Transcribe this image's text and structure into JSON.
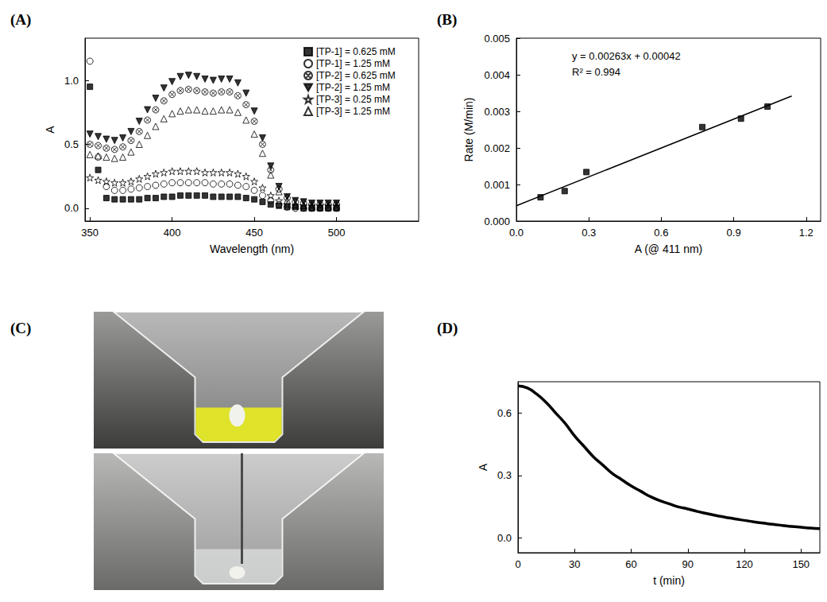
{
  "chart_data": [
    {
      "type": "scatter",
      "title": "(A)",
      "x_label": "Wavelength (nm)",
      "y_label": "A",
      "x": [
        350,
        355,
        360,
        365,
        370,
        375,
        380,
        385,
        390,
        395,
        400,
        405,
        410,
        415,
        420,
        425,
        430,
        435,
        440,
        445,
        450,
        455,
        460,
        465,
        470,
        475,
        480,
        485,
        490,
        495,
        500
      ],
      "series": [
        {
          "name": "[TP-1] = 0.625 mM",
          "color": "#000000",
          "marker": "square",
          "values": [
            0.95,
            0.3,
            0.08,
            0.07,
            0.07,
            0.07,
            0.07,
            0.08,
            0.08,
            0.09,
            0.09,
            0.1,
            0.1,
            0.1,
            0.1,
            0.09,
            0.09,
            0.09,
            0.09,
            0.08,
            0.07,
            0.05,
            0.03,
            0.02,
            0.01,
            0.01,
            0,
            0,
            0,
            0,
            0
          ]
        },
        {
          "name": "[TP-1] = 1.25 mM",
          "color": "#000000",
          "marker": "circle_open",
          "values": [
            1.15,
            0.4,
            0.17,
            0.14,
            0.14,
            0.15,
            0.16,
            0.17,
            0.18,
            0.19,
            0.2,
            0.2,
            0.2,
            0.2,
            0.2,
            0.19,
            0.19,
            0.19,
            0.18,
            0.17,
            0.14,
            0.1,
            0.06,
            0.03,
            0.01,
            0,
            0,
            0,
            0,
            0,
            0
          ]
        },
        {
          "name": "[TP-2] = 0.625 mM",
          "color": "#000000",
          "marker": "circle_crossed",
          "values": [
            0.5,
            0.49,
            0.47,
            0.46,
            0.48,
            0.53,
            0.6,
            0.69,
            0.77,
            0.84,
            0.89,
            0.92,
            0.93,
            0.92,
            0.91,
            0.9,
            0.91,
            0.91,
            0.88,
            0.81,
            0.68,
            0.5,
            0.3,
            0.15,
            0.08,
            0.05,
            0.04,
            0.03,
            0.03,
            0.03,
            0.03
          ]
        },
        {
          "name": "[TP-2] = 1.25 mM",
          "color": "#000000",
          "marker": "triangle_down",
          "values": [
            0.58,
            0.56,
            0.54,
            0.53,
            0.55,
            0.6,
            0.68,
            0.77,
            0.86,
            0.94,
            0.99,
            1.03,
            1.04,
            1.03,
            1.01,
            1.0,
            1.01,
            1.01,
            0.98,
            0.9,
            0.76,
            0.55,
            0.33,
            0.17,
            0.09,
            0.06,
            0.05,
            0.04,
            0.04,
            0.04,
            0.04
          ]
        },
        {
          "name": "[TP-3] = 0.25 mM",
          "color": "#000000",
          "marker": "star",
          "values": [
            0.24,
            0.22,
            0.21,
            0.2,
            0.2,
            0.21,
            0.23,
            0.25,
            0.27,
            0.28,
            0.29,
            0.29,
            0.29,
            0.29,
            0.28,
            0.28,
            0.28,
            0.28,
            0.27,
            0.25,
            0.21,
            0.16,
            0.1,
            0.06,
            0.03,
            0.02,
            0.02,
            0.02,
            0.02,
            0.02,
            0.02
          ]
        },
        {
          "name": "[TP-3] = 1.25 mM",
          "color": "#000000",
          "marker": "triangle_open",
          "values": [
            0.42,
            0.41,
            0.4,
            0.39,
            0.4,
            0.44,
            0.5,
            0.57,
            0.64,
            0.7,
            0.74,
            0.76,
            0.77,
            0.77,
            0.76,
            0.76,
            0.77,
            0.77,
            0.75,
            0.69,
            0.58,
            0.43,
            0.26,
            0.13,
            0.06,
            0.03,
            0.02,
            0.01,
            0.01,
            0.01,
            0.01
          ]
        }
      ],
      "xlim": [
        347,
        550
      ],
      "xticks": [
        350,
        400,
        450,
        500
      ],
      "ylim": [
        -0.1,
        1.33
      ],
      "yticks": [
        {
          "value": 0,
          "label": "0.0"
        },
        {
          "value": 0.5,
          "label": "0.5"
        },
        {
          "value": 1,
          "label": "1.0"
        }
      ],
      "legend": "top-right",
      "grid": false
    },
    {
      "type": "scatter",
      "title": "(B)",
      "x_label": "A (@ 411 nm)",
      "y_label": "Rate (M/min)",
      "series": [
        {
          "type": "scatter",
          "color": "#000000",
          "marker": "square",
          "x": [
            0.1,
            0.2,
            0.29,
            0.77,
            0.93,
            1.04
          ],
          "values": [
            0.00065,
            0.00082,
            0.00134,
            0.00257,
            0.0028,
            0.00313
          ]
        },
        {
          "type": "line",
          "color": "#000000",
          "marker": "none",
          "line_style": "solid",
          "x": [
            0,
            1.14
          ],
          "values": [
            0.00042,
            0.00342
          ]
        }
      ],
      "annotations": [
        "y = 0.00263x + 0.00042",
        "R² = 0.994"
      ],
      "xlim": [
        0,
        1.26
      ],
      "xticks": [
        {
          "value": 0,
          "label": "0.0"
        },
        {
          "value": 0.3,
          "label": "0.3"
        },
        {
          "value": 0.6,
          "label": "0.6"
        },
        {
          "value": 0.9,
          "label": "0.9"
        },
        {
          "value": 1.2,
          "label": "1.2"
        }
      ],
      "ylim": [
        0,
        0.005
      ],
      "yticks": [
        {
          "value": 0,
          "label": "0.000"
        },
        {
          "value": 0.001,
          "label": "0.001"
        },
        {
          "value": 0.002,
          "label": "0.002"
        },
        {
          "value": 0.003,
          "label": "0.003"
        },
        {
          "value": 0.004,
          "label": "0.004"
        },
        {
          "value": 0.005,
          "label": "0.005"
        }
      ],
      "grid": false
    },
    {
      "type": "photo",
      "title": "(C)"
    },
    {
      "type": "line",
      "title": "(D)",
      "x_label": "t (min)",
      "y_label": "A",
      "x": [
        0,
        5,
        10,
        15,
        20,
        25,
        30,
        35,
        40,
        45,
        50,
        55,
        60,
        65,
        70,
        75,
        80,
        85,
        90,
        95,
        100,
        105,
        110,
        115,
        120,
        125,
        130,
        135,
        140,
        145,
        150,
        155,
        160
      ],
      "series": [
        {
          "color": "#000000",
          "marker": "none",
          "line_style": "solid",
          "values": [
            0.73,
            0.72,
            0.69,
            0.65,
            0.6,
            0.55,
            0.49,
            0.44,
            0.39,
            0.35,
            0.31,
            0.28,
            0.25,
            0.225,
            0.2,
            0.18,
            0.165,
            0.15,
            0.14,
            0.128,
            0.118,
            0.108,
            0.1,
            0.092,
            0.085,
            0.078,
            0.072,
            0.066,
            0.061,
            0.056,
            0.052,
            0.048,
            0.045
          ]
        }
      ],
      "xlim": [
        0,
        160
      ],
      "xticks": [
        0,
        30,
        60,
        90,
        120,
        150
      ],
      "ylim": [
        -0.07,
        0.75
      ],
      "yticks": [
        {
          "value": 0,
          "label": "0.0"
        },
        {
          "value": 0.3,
          "label": "0.3"
        },
        {
          "value": 0.6,
          "label": "0.6"
        }
      ],
      "grid": false
    }
  ]
}
